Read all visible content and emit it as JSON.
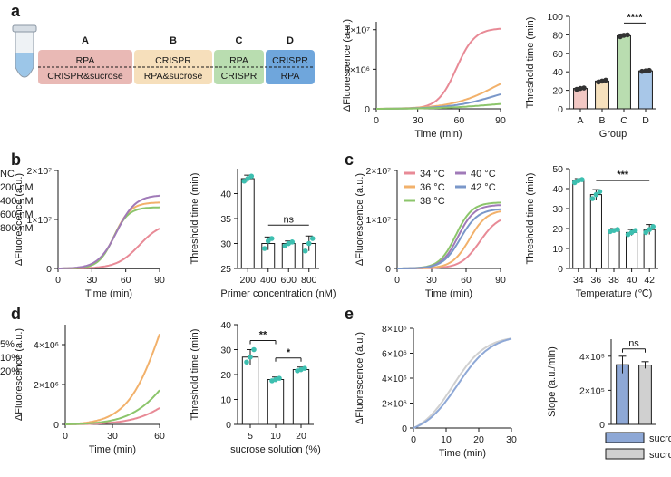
{
  "panels": [
    "a",
    "b",
    "c",
    "d",
    "e"
  ],
  "colors": {
    "red": "#e88a96",
    "orange": "#f2b16b",
    "blue": "#7a97c9",
    "green": "#8cc56b",
    "purple": "#a07ab8",
    "gray": "#555555",
    "teal": "#3dbfb0",
    "barA": "#f2c8c4",
    "barB": "#f6e1bd",
    "barC": "#b9ddb0",
    "barD": "#a8c7e8",
    "barE1": "#8ea8d6",
    "barE2": "#d0d0d0"
  },
  "schematic": {
    "groups": [
      {
        "letter": "A",
        "top": "RPA",
        "bottom": "CRISPR&sucrose",
        "color": "#e9b9b5",
        "letter_color": "#e88a96"
      },
      {
        "letter": "B",
        "top": "CRISPR",
        "bottom": "RPA&sucrose",
        "color": "#f6dfbb",
        "letter_color": "#f2b16b"
      },
      {
        "letter": "C",
        "top": "RPA",
        "bottom": "CRISPR",
        "color": "#b9ddb0",
        "letter_color": "#7cb85e"
      },
      {
        "letter": "D",
        "top": "CRISPR",
        "bottom": "RPA",
        "color": "#6fa6dc",
        "letter_color": "#4f86c6"
      }
    ]
  },
  "chart_data": [
    {
      "id": "a-curves",
      "type": "line",
      "xlabel": "Time (min)",
      "ylabel": "ΔFluorescence (a.u.)",
      "xlim": [
        0,
        90
      ],
      "xticks": [
        0,
        30,
        60,
        90
      ],
      "ylim": [
        0,
        11000000
      ],
      "yticks": [
        0,
        5000000,
        10000000
      ],
      "ytick_labels": [
        "0",
        "5×10⁶",
        "1×10⁷"
      ],
      "series": [
        {
          "name": "A",
          "color": "#e88a96",
          "plateau": 10200000,
          "midpoint": 58,
          "steep": 0.15
        },
        {
          "name": "B",
          "color": "#f2b16b",
          "plateau": 6000000,
          "midpoint": 88,
          "steep": 0.06
        },
        {
          "name": "D",
          "color": "#7a97c9",
          "plateau": 3500000,
          "midpoint": 88,
          "steep": 0.06
        },
        {
          "name": "C",
          "color": "#8cc56b",
          "plateau": 1200000,
          "midpoint": 88,
          "steep": 0.05
        }
      ]
    },
    {
      "id": "a-bars",
      "type": "bar",
      "xlabel": "Group",
      "ylabel": "Threshold time (min)",
      "ylim": [
        0,
        100
      ],
      "yticks": [
        0,
        20,
        40,
        60,
        80,
        100
      ],
      "categories": [
        "A",
        "B",
        "C",
        "D"
      ],
      "values": [
        22,
        30,
        79,
        41
      ],
      "errors": [
        1,
        1,
        2,
        1
      ],
      "points": [
        [
          21,
          22,
          22.5
        ],
        [
          29,
          30,
          31
        ],
        [
          78,
          79.5,
          80
        ],
        [
          40.5,
          41,
          41.5
        ]
      ],
      "colors": [
        "#f2c8c4",
        "#f6e1bd",
        "#b9ddb0",
        "#a8c7e8"
      ],
      "point_color": "#333333",
      "significance": [
        {
          "from": 2,
          "to": 3,
          "label": "****"
        }
      ]
    },
    {
      "id": "b-curves",
      "type": "line",
      "xlabel": "Time (min)",
      "ylabel": "ΔFluorescence (a.u.)",
      "xlim": [
        0,
        90
      ],
      "xticks": [
        0,
        30,
        60,
        90
      ],
      "ylim": [
        0,
        20000000
      ],
      "yticks": [
        0,
        10000000,
        20000000
      ],
      "ytick_labels": [
        "0",
        "1×10⁷",
        "2×10⁷"
      ],
      "series": [
        {
          "name": "NC",
          "color": "#555555",
          "plateau": 200000,
          "midpoint": 200,
          "steep": 0.05
        },
        {
          "name": "200 nM",
          "color": "#e88a96",
          "plateau": 9500000,
          "midpoint": 72,
          "steep": 0.1
        },
        {
          "name": "400 nM",
          "color": "#f2b16b",
          "plateau": 13500000,
          "midpoint": 50,
          "steep": 0.14
        },
        {
          "name": "600 nM",
          "color": "#8cc56b",
          "plateau": 12500000,
          "midpoint": 49,
          "steep": 0.15
        },
        {
          "name": "800 nM",
          "color": "#a07ab8",
          "plateau": 15000000,
          "midpoint": 52,
          "steep": 0.12
        }
      ]
    },
    {
      "id": "b-bars",
      "type": "bar",
      "xlabel": "Primer concentration (nM)",
      "ylabel": "Threshold time (min)",
      "ylim": [
        25,
        45
      ],
      "yticks": [
        25,
        30,
        35,
        40
      ],
      "categories": [
        "200",
        "400",
        "600",
        "800"
      ],
      "values": [
        43,
        30,
        30,
        30
      ],
      "errors": [
        0.7,
        1.3,
        0.5,
        1.5
      ],
      "points": [
        [
          42.5,
          43,
          43.5
        ],
        [
          29,
          30.5,
          31
        ],
        [
          29.5,
          30,
          30.3
        ],
        [
          28.5,
          30,
          31
        ]
      ],
      "colors": [
        "#ffffff",
        "#ffffff",
        "#ffffff",
        "#ffffff"
      ],
      "point_color": "#3dbfb0",
      "significance": [
        {
          "from": 1,
          "to": 3,
          "label": "ns"
        }
      ]
    },
    {
      "id": "c-curves",
      "type": "line",
      "xlabel": "Time (min)",
      "ylabel": "ΔFluorescence (a.u.)",
      "xlim": [
        0,
        90
      ],
      "xticks": [
        0,
        30,
        60,
        90
      ],
      "ylim": [
        0,
        20000000
      ],
      "yticks": [
        0,
        10000000,
        20000000
      ],
      "ytick_labels": [
        "0",
        "1×10⁷",
        "2×10⁷"
      ],
      "series": [
        {
          "name": "34 °C",
          "color": "#e88a96",
          "plateau": 11000000,
          "midpoint": 72,
          "steep": 0.12
        },
        {
          "name": "36 °C",
          "color": "#f2b16b",
          "plateau": 12000000,
          "midpoint": 63,
          "steep": 0.13
        },
        {
          "name": "38 °C",
          "color": "#8cc56b",
          "plateau": 13500000,
          "midpoint": 51,
          "steep": 0.14
        },
        {
          "name": "40 °C",
          "color": "#a07ab8",
          "plateau": 13000000,
          "midpoint": 53,
          "steep": 0.14
        },
        {
          "name": "42 °C",
          "color": "#7a97c9",
          "plateau": 12200000,
          "midpoint": 55,
          "steep": 0.13
        }
      ]
    },
    {
      "id": "c-bars",
      "type": "bar",
      "xlabel": "Temperature (℃)",
      "ylabel": "Threshold time (min)",
      "ylim": [
        0,
        50
      ],
      "yticks": [
        0,
        10,
        20,
        30,
        40,
        50
      ],
      "categories": [
        "34",
        "36",
        "38",
        "40",
        "42"
      ],
      "values": [
        44,
        37,
        19,
        18,
        19.5
      ],
      "errors": [
        1,
        2.5,
        1,
        1.5,
        2.5
      ],
      "points": [
        [
          43,
          44,
          44.5
        ],
        [
          35,
          37,
          38.5
        ],
        [
          18.5,
          19,
          19.5
        ],
        [
          17,
          18,
          19
        ],
        [
          18,
          19.5,
          21
        ]
      ],
      "colors": [
        "#ffffff",
        "#ffffff",
        "#ffffff",
        "#ffffff",
        "#ffffff"
      ],
      "point_color": "#3dbfb0",
      "significance": [
        {
          "from": 1,
          "to": 4,
          "label": "***"
        }
      ]
    },
    {
      "id": "d-curves",
      "type": "line",
      "xlabel": "Time (min)",
      "ylabel": "ΔFluorescence (a.u.)",
      "xlim": [
        0,
        60
      ],
      "xticks": [
        0,
        30,
        60
      ],
      "ylim": [
        0,
        5000000
      ],
      "yticks": [
        0,
        2000000,
        4000000
      ],
      "ytick_labels": [
        "0",
        "2×10⁶",
        "4×10⁶"
      ],
      "series": [
        {
          "name": "5%",
          "color": "#e88a96",
          "plateau": 3000000,
          "midpoint": 72,
          "steep": 0.08
        },
        {
          "name": "10%",
          "color": "#f2b16b",
          "plateau": 10000000,
          "midpoint": 62,
          "steep": 0.09
        },
        {
          "name": "20%",
          "color": "#8cc56b",
          "plateau": 5000000,
          "midpoint": 68,
          "steep": 0.08
        }
      ]
    },
    {
      "id": "d-bars",
      "type": "bar",
      "xlabel": "sucrose solution (%)",
      "ylabel": "Threshold time (min)",
      "ylim": [
        0,
        40
      ],
      "yticks": [
        0,
        10,
        20,
        30,
        40
      ],
      "categories": [
        "5",
        "10",
        "20"
      ],
      "values": [
        27,
        18,
        22
      ],
      "errors": [
        3,
        1,
        1
      ],
      "points": [
        [
          25,
          27,
          30
        ],
        [
          17.5,
          18,
          18.5
        ],
        [
          21.5,
          22,
          22.5
        ]
      ],
      "colors": [
        "#ffffff",
        "#ffffff",
        "#ffffff"
      ],
      "point_color": "#3dbfb0",
      "significance": [
        {
          "from": 0,
          "to": 1,
          "label": "**"
        },
        {
          "from": 1,
          "to": 2,
          "label": "*"
        }
      ]
    },
    {
      "id": "e-curves",
      "type": "line",
      "xlabel": "Time (min)",
      "ylabel": "ΔFluorescence (a.u.)",
      "xlim": [
        0,
        30
      ],
      "xticks": [
        0,
        10,
        20,
        30
      ],
      "ylim": [
        0,
        8000000
      ],
      "yticks": [
        0,
        2000000,
        4000000,
        6000000,
        8000000
      ],
      "ytick_labels": [
        "0",
        "2×10⁶",
        "4×10⁶",
        "6×10⁶",
        "8×10⁶"
      ],
      "series": [
        {
          "name": "sucrose-",
          "color": "#d0d0d0",
          "plateau": 7400000,
          "midpoint": 12,
          "steep": 0.2
        },
        {
          "name": "sucrose+",
          "color": "#8ea8d6",
          "plateau": 7500000,
          "midpoint": 13.5,
          "steep": 0.19
        }
      ]
    },
    {
      "id": "e-bars",
      "type": "bar",
      "xlabel": "",
      "ylabel": "Slope (a.u./min)",
      "ylim": [
        0,
        500000
      ],
      "yticks": [
        0,
        200000,
        400000
      ],
      "ytick_labels": [
        "0",
        "2×10⁵",
        "4×10⁵"
      ],
      "categories": [
        "sucrose+",
        "sucrose-"
      ],
      "values": [
        350000,
        348000
      ],
      "errors": [
        50000,
        20000
      ],
      "points": [],
      "colors": [
        "#8ea8d6",
        "#d0d0d0"
      ],
      "point_color": "#333333",
      "significance": [
        {
          "from": 0,
          "to": 1,
          "label": "ns"
        }
      ],
      "legend": [
        "sucrose+",
        "sucrose-"
      ]
    }
  ]
}
